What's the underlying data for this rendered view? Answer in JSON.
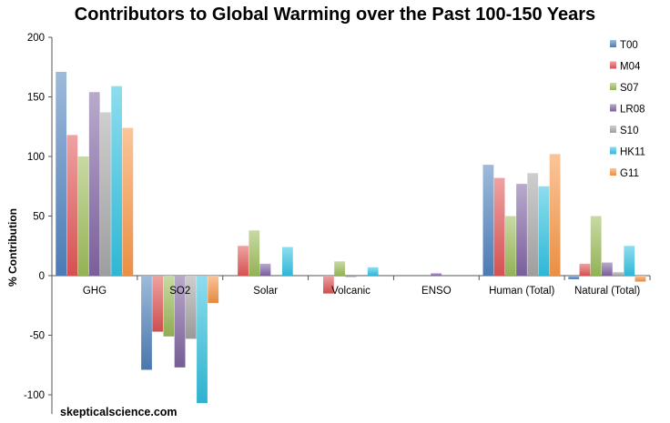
{
  "chart_data": {
    "type": "bar",
    "title": "Contributors to Global Warming over the Past 100-150 Years",
    "ylabel": "% Contribution",
    "xlabel": "",
    "ylim": [
      -110,
      200
    ],
    "yticks": [
      200,
      150,
      100,
      50,
      0,
      -50,
      -100
    ],
    "categories": [
      "GHG",
      "SO2",
      "Solar",
      "Volcanic",
      "ENSO",
      "Human (Total)",
      "Natural (Total)"
    ],
    "series": [
      {
        "name": "T00",
        "color": "#4f81bd",
        "values": [
          171,
          -79,
          0,
          0,
          0,
          93,
          -3
        ]
      },
      {
        "name": "M04",
        "color": "#e05555",
        "values": [
          118,
          -47,
          25,
          -15,
          0,
          82,
          10
        ]
      },
      {
        "name": "S07",
        "color": "#9bbb59",
        "values": [
          100,
          -51,
          38,
          12,
          0,
          50,
          50
        ]
      },
      {
        "name": "LR08",
        "color": "#8064a2",
        "values": [
          154,
          -77,
          10,
          -1,
          2,
          77,
          11
        ]
      },
      {
        "name": "S10",
        "color": "#a6a6a6",
        "values": [
          137,
          -53,
          0,
          0,
          0,
          86,
          3
        ]
      },
      {
        "name": "HK11",
        "color": "#31c1e0",
        "values": [
          159,
          -107,
          24,
          7,
          0,
          75,
          25
        ]
      },
      {
        "name": "G11",
        "color": "#f79646",
        "values": [
          124,
          -23,
          0,
          0,
          0,
          102,
          -5
        ]
      }
    ],
    "grid": false,
    "legend": "top-right"
  },
  "footer": {
    "watermark": "skepticalscience.com"
  }
}
